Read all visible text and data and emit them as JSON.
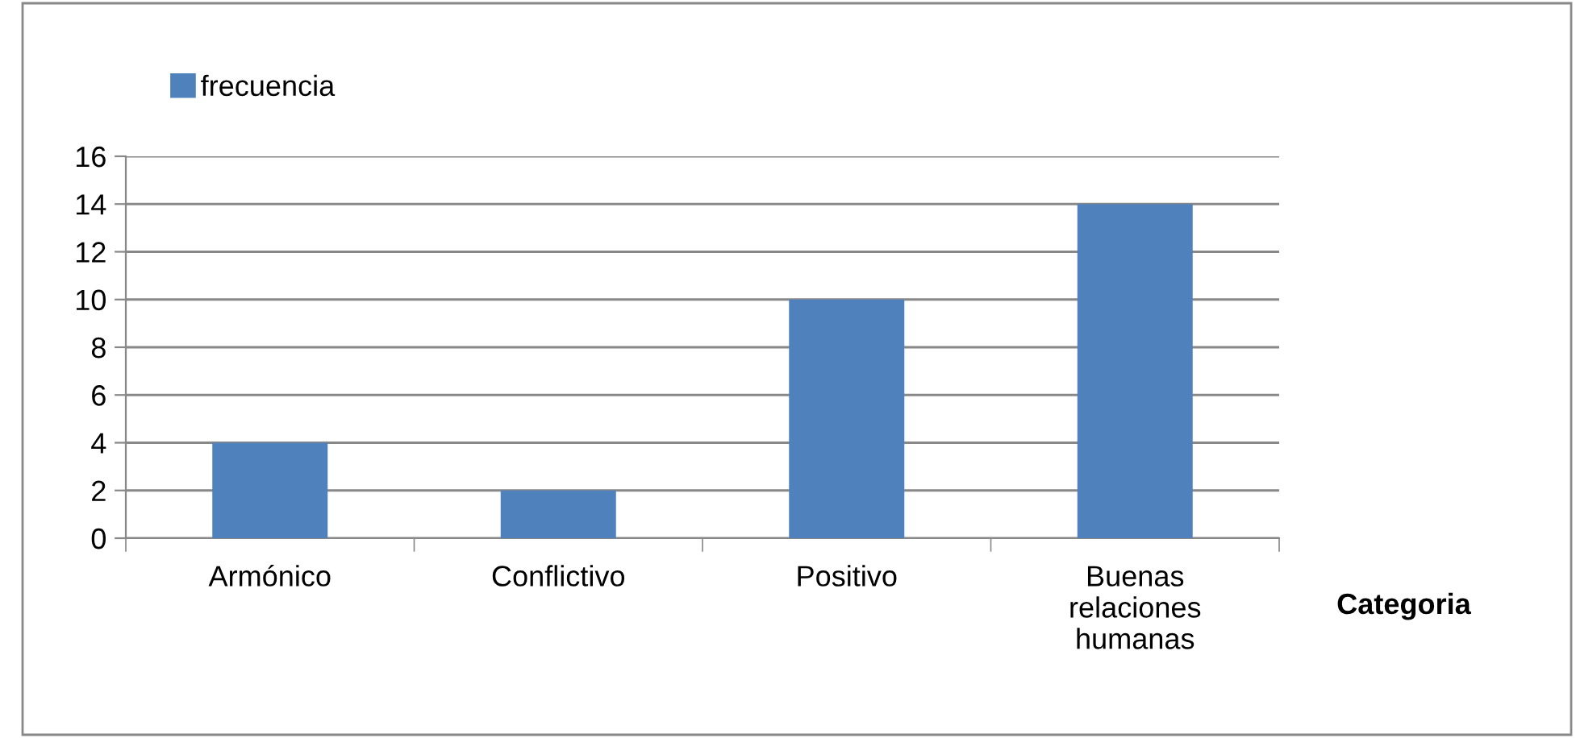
{
  "chart_data": {
    "type": "bar",
    "xlabel": "Categoria",
    "categories": [
      "Armónico",
      "Conflictivo",
      "Positivo",
      "Buenas\nrelaciones\nhumanas"
    ],
    "series": [
      {
        "name": "frecuencia",
        "color": "#4f81bd",
        "values": [
          4,
          2,
          10,
          14
        ]
      }
    ],
    "ylim": [
      0,
      16
    ],
    "yticks": [
      0,
      2,
      4,
      6,
      8,
      10,
      12,
      14,
      16
    ],
    "grid": "y",
    "legend": "top left"
  }
}
